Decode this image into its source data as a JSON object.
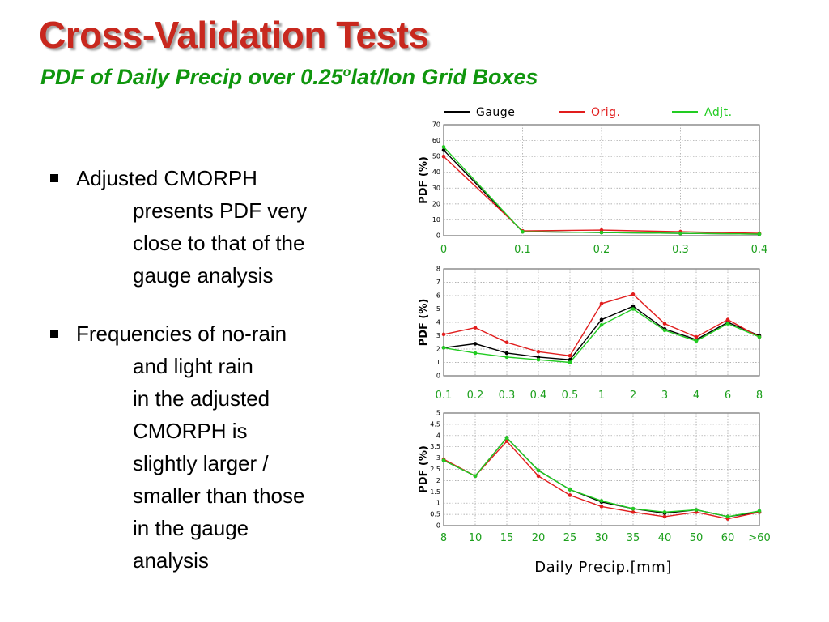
{
  "slide": {
    "title": "Cross-Validation Tests",
    "subtitle_main": "PDF of Daily Precip over 0.25",
    "subtitle_sup": "o",
    "subtitle_rest": "lat/lon Grid Boxes"
  },
  "bullets": [
    {
      "first": "Adjusted CMORPH",
      "rest": [
        "presents PDF very",
        "close to that of the",
        "gauge analysis"
      ]
    },
    {
      "first": "Frequencies of no-rain",
      "rest": [
        "and light rain",
        "in the adjusted",
        "CMORPH is",
        "slightly larger /",
        "smaller than those",
        "in the gauge",
        "analysis"
      ]
    }
  ],
  "legend": {
    "placement": "top",
    "entries": [
      {
        "name": "Gauge",
        "color": "#000000"
      },
      {
        "name": "Orig.",
        "color": "#e11d1d"
      },
      {
        "name": "Adjt.",
        "color": "#22cc22"
      }
    ]
  },
  "colors": {
    "title": "#c8281e",
    "subtitle": "#10960e",
    "tick_labels": "#1ea01e",
    "grid": "#9a9a9a"
  },
  "x_axis_title": "Daily  Precip.[mm]",
  "chart_data": [
    {
      "type": "line",
      "ylabel": "PDF (%)",
      "ylim": [
        0,
        70
      ],
      "yticks": [
        "0",
        "10",
        "20",
        "30",
        "40",
        "50",
        "60",
        "70"
      ],
      "categories": [
        "0",
        "0.1",
        "0.2",
        "0.3",
        "0.4"
      ],
      "grid": true,
      "series": [
        {
          "name": "Gauge",
          "values": [
            54,
            2.5,
            2,
            1.5,
            1
          ]
        },
        {
          "name": "Orig.",
          "values": [
            50,
            3,
            3.5,
            2.5,
            1.5
          ]
        },
        {
          "name": "Adjt.",
          "values": [
            56,
            2.5,
            2,
            1.5,
            1
          ]
        }
      ]
    },
    {
      "type": "line",
      "ylabel": "PDF (%)",
      "ylim": [
        0,
        8
      ],
      "yticks": [
        "0",
        "1",
        "2",
        "3",
        "4",
        "5",
        "6",
        "7",
        "8"
      ],
      "categories": [
        "0.1",
        "0.2",
        "0.3",
        "0.4",
        "0.5",
        "1",
        "2",
        "3",
        "4",
        "6",
        "8"
      ],
      "grid": true,
      "series": [
        {
          "name": "Gauge",
          "values": [
            2.1,
            2.4,
            1.7,
            1.4,
            1.2,
            4.2,
            5.2,
            3.5,
            2.7,
            4.0,
            3.0
          ]
        },
        {
          "name": "Orig.",
          "values": [
            3.1,
            3.6,
            2.5,
            1.8,
            1.5,
            5.4,
            6.1,
            3.9,
            2.9,
            4.2,
            2.9
          ]
        },
        {
          "name": "Adjt.",
          "values": [
            2.1,
            1.7,
            1.4,
            1.2,
            1.0,
            3.8,
            5.0,
            3.4,
            2.6,
            3.9,
            2.9
          ]
        }
      ]
    },
    {
      "type": "line",
      "ylabel": "PDF (%)",
      "ylim": [
        0,
        5
      ],
      "yticks": [
        "0",
        "0.5",
        "1",
        "1.5",
        "2",
        "2.5",
        "3",
        "3.5",
        "4",
        "4.5",
        "5"
      ],
      "categories": [
        "8",
        "10",
        "15",
        "20",
        "25",
        "30",
        "35",
        "40",
        "50",
        "60",
        ">60"
      ],
      "grid": true,
      "series": [
        {
          "name": "Gauge",
          "values": [
            2.9,
            2.2,
            3.9,
            2.45,
            1.6,
            1.05,
            0.75,
            0.55,
            0.7,
            0.4,
            0.6
          ]
        },
        {
          "name": "Orig.",
          "values": [
            2.95,
            2.2,
            3.75,
            2.2,
            1.35,
            0.85,
            0.6,
            0.4,
            0.6,
            0.3,
            0.6
          ]
        },
        {
          "name": "Adjt.",
          "values": [
            2.9,
            2.2,
            3.9,
            2.45,
            1.6,
            1.1,
            0.75,
            0.6,
            0.7,
            0.4,
            0.65
          ]
        }
      ]
    }
  ]
}
